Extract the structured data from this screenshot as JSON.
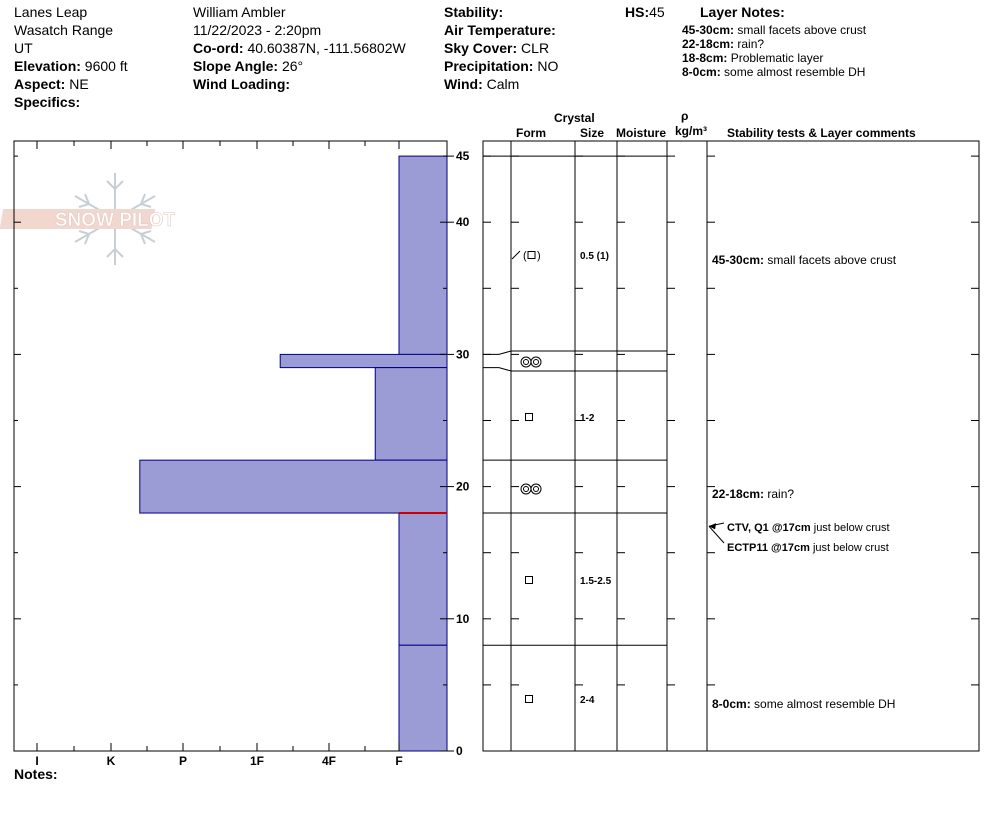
{
  "header": {
    "location": "Lanes Leap",
    "range": "Wasatch Range",
    "state": "UT",
    "elevation_label": "Elevation:",
    "elevation": "9600 ft",
    "aspect_label": "Aspect:",
    "aspect": "NE",
    "specifics_label": "Specifics:",
    "observer": "William Ambler",
    "datetime": "11/22/2023 - 2:20pm",
    "coord_label": "Co-ord:",
    "coord": "40.60387N, -111.56802W",
    "slope_label": "Slope Angle:",
    "slope": "26°",
    "wind_loading_label": "Wind Loading:",
    "stability_label": "Stability:",
    "air_temp_label": "Air Temperature:",
    "sky_label": "Sky Cover:",
    "sky": "CLR",
    "precip_label": "Precipitation:",
    "precip": "NO",
    "wind_label": "Wind:",
    "wind": "Calm",
    "hs_label": "HS:",
    "hs": "45"
  },
  "layer_notes": {
    "title": "Layer Notes:",
    "items": [
      {
        "range": "45-30cm:",
        "text": "small facets above crust"
      },
      {
        "range": "22-18cm:",
        "text": "rain?"
      },
      {
        "range": "18-8cm:",
        "text": "Problematic layer"
      },
      {
        "range": "8-0cm:",
        "text": "some almost resemble DH"
      }
    ]
  },
  "logo": {
    "text": "SNOW PILOT"
  },
  "columns": {
    "crystal": "Crystal",
    "form": "Form",
    "size": "Size",
    "moisture": "Moisture",
    "rho": "ρ",
    "density_unit": "kg/m³",
    "comments": "Stability tests & Layer comments"
  },
  "notes_label": "Notes:",
  "chart_data": {
    "type": "bar",
    "orientation": "horizontal",
    "ylim": [
      0,
      45
    ],
    "y_ticks": [
      0,
      10,
      20,
      30,
      40,
      45
    ],
    "x_categories": [
      "I",
      "K",
      "P",
      "1F",
      "4F",
      "F"
    ],
    "hardness_scale_note": "F=0, 4F=1, 1F=2, P=3, K=4, I=5",
    "layers": [
      {
        "top": 45,
        "bottom": 30,
        "hardness": 0
      },
      {
        "top": 30,
        "bottom": 29,
        "hardness": 1.65
      },
      {
        "top": 29,
        "bottom": 22,
        "hardness": 0.33
      },
      {
        "top": 22,
        "bottom": 18,
        "hardness": 3.6
      },
      {
        "top": 18,
        "bottom": 8,
        "hardness": 0
      },
      {
        "top": 8,
        "bottom": 0,
        "hardness": 0
      }
    ],
    "crust_marker": 18,
    "colors": {
      "fill": "#9b9bd5",
      "stroke": "#000080",
      "marker": "#cc0000"
    }
  },
  "profile_layers": [
    {
      "top": 45,
      "bottom": 30.2,
      "form_icon": "facets-rounding",
      "size": "0.5 (1)",
      "comment_range": "45-30cm:",
      "comment": "small facets above crust"
    },
    {
      "top": 30.2,
      "bottom": 28.9,
      "form_icon": "melt-forms",
      "size": "",
      "comment_range": "",
      "comment": ""
    },
    {
      "top": 28.9,
      "bottom": 22,
      "form_icon": "facets",
      "size": "1-2",
      "comment_range": "",
      "comment": ""
    },
    {
      "top": 22,
      "bottom": 18,
      "form_icon": "melt-forms",
      "size": "",
      "comment_range": "22-18cm:",
      "comment": "rain?"
    },
    {
      "top": 18,
      "bottom": 8,
      "form_icon": "facets",
      "size": "1.5-2.5",
      "comment_range": "",
      "comment": ""
    },
    {
      "top": 8,
      "bottom": 0,
      "form_icon": "facets",
      "size": "2-4",
      "comment_range": "8-0cm:",
      "comment": "some almost resemble DH"
    }
  ],
  "stability_tests": [
    {
      "label": "CTV, Q1 @17cm",
      "comment": "just below crust",
      "depth": 17
    },
    {
      "label": "ECTP11 @17cm",
      "comment": "just below crust",
      "depth": 17
    }
  ]
}
